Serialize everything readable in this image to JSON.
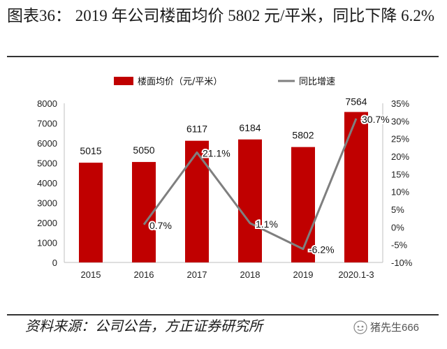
{
  "title": "图表36： 2019 年公司楼面均价 5802 元/平米，同比下降 6.2%",
  "source": "资料来源：公司公告，方正证券研究所",
  "watermark": "猪先生666",
  "colors": {
    "bar": "#c00000",
    "line": "#7f7f7f"
  },
  "chart_data": {
    "type": "bar+line",
    "categories": [
      "2015",
      "2016",
      "2017",
      "2018",
      "2019",
      "2020.1-3"
    ],
    "series": [
      {
        "name": "楼面均价（元/平米）",
        "type": "bar",
        "axis": "left",
        "values": [
          5015,
          5050,
          6117,
          6184,
          5802,
          7564
        ],
        "labels": [
          "5015",
          "5050",
          "6117",
          "6184",
          "5802",
          "7564"
        ]
      },
      {
        "name": "同比增速",
        "type": "line",
        "axis": "right",
        "values": [
          null,
          0.7,
          21.1,
          1.1,
          -6.2,
          30.7
        ],
        "labels": [
          "",
          "0.7%",
          "21.1%",
          "1.1%",
          "-6.2%",
          "30.7%"
        ]
      }
    ],
    "y_left": {
      "min": 0,
      "max": 8000,
      "step": 1000,
      "ticks": [
        "0",
        "1000",
        "2000",
        "3000",
        "4000",
        "5000",
        "6000",
        "7000",
        "8000"
      ]
    },
    "y_right": {
      "min": -10,
      "max": 35,
      "step": 5,
      "ticks": [
        "-10%",
        "-5%",
        "0%",
        "5%",
        "10%",
        "15%",
        "20%",
        "25%",
        "30%",
        "35%"
      ]
    },
    "legend": [
      "楼面均价（元/平米）",
      "同比增速"
    ],
    "legend_position": "top"
  }
}
